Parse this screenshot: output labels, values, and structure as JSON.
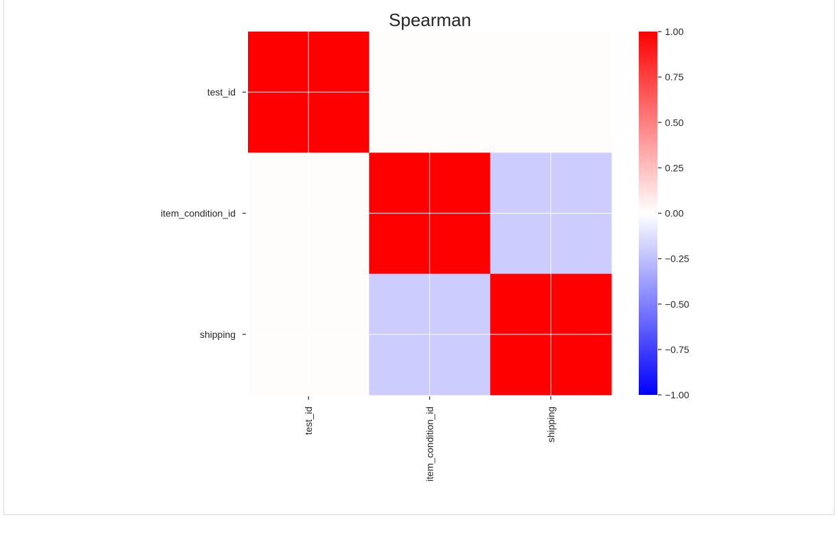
{
  "chart_data": {
    "type": "heatmap",
    "title": "Spearman",
    "x_labels": [
      "test_id",
      "item_condition_id",
      "shipping"
    ],
    "y_labels": [
      "test_id",
      "item_condition_id",
      "shipping"
    ],
    "values": [
      [
        1.0,
        0.01,
        0.01
      ],
      [
        0.01,
        1.0,
        -0.2
      ],
      [
        0.01,
        -0.2,
        1.0
      ]
    ],
    "colormap": "bwr",
    "vmin": -1.0,
    "vmax": 1.0,
    "colorbar_ticks": [
      "1.00",
      "0.75",
      "0.50",
      "0.25",
      "0.00",
      "−0.25",
      "−0.50",
      "−0.75",
      "−1.00"
    ],
    "colorbar_tick_values": [
      1.0,
      0.75,
      0.5,
      0.25,
      0.0,
      -0.25,
      -0.5,
      -0.75,
      -1.0
    ],
    "grid": true,
    "colors": {
      "min": "#0000ff",
      "mid": "#ffffff",
      "max": "#ff0000",
      "grid": "#ffffff"
    }
  }
}
